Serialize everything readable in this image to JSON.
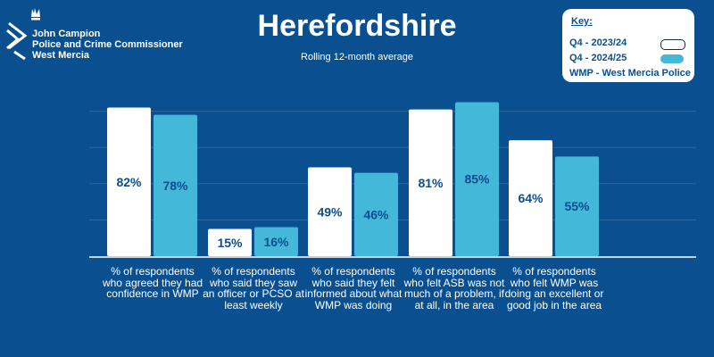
{
  "header": {
    "logo_lines": [
      "John Campion",
      "Police and Crime Commissioner",
      "West Mercia"
    ],
    "title": "Herefordshire",
    "subtitle": "Rolling 12-month average"
  },
  "key": {
    "title": "Key:",
    "entries": [
      {
        "label": "Q4 - 2023/24",
        "color": "#ffffff"
      },
      {
        "label": "Q4 - 2024/25",
        "color": "#43b8d9"
      }
    ],
    "note": "WMP - West Mercia Police"
  },
  "colors": {
    "background": "#0a4f8f",
    "series_a": "#ffffff",
    "series_b": "#43b8d9",
    "value_text": "#0a4f8f"
  },
  "chart_data": {
    "type": "bar",
    "categories": [
      "% of respondents who agreed they had confidence in WMP",
      "% of respondents who said they saw an officer or PCSO at least weekly",
      "% of respondents who said they felt  informed about what WMP was doing",
      "% of respondents who felt ASB was not much of a problem, if at all, in the area",
      "% of respondents who felt WMP was doing an excellent or good job in the area"
    ],
    "series": [
      {
        "name": "Q4 - 2023/24",
        "values": [
          82,
          15,
          49,
          81,
          64
        ]
      },
      {
        "name": "Q4 - 2024/25",
        "values": [
          78,
          16,
          46,
          85,
          55
        ]
      }
    ],
    "value_labels": [
      [
        "82%",
        "15%",
        "49%",
        "81%",
        "64%"
      ],
      [
        "78%",
        "16%",
        "46%",
        "85%",
        "55%"
      ]
    ],
    "ylim": [
      0,
      100
    ],
    "grid": true,
    "legend": "top-right"
  }
}
